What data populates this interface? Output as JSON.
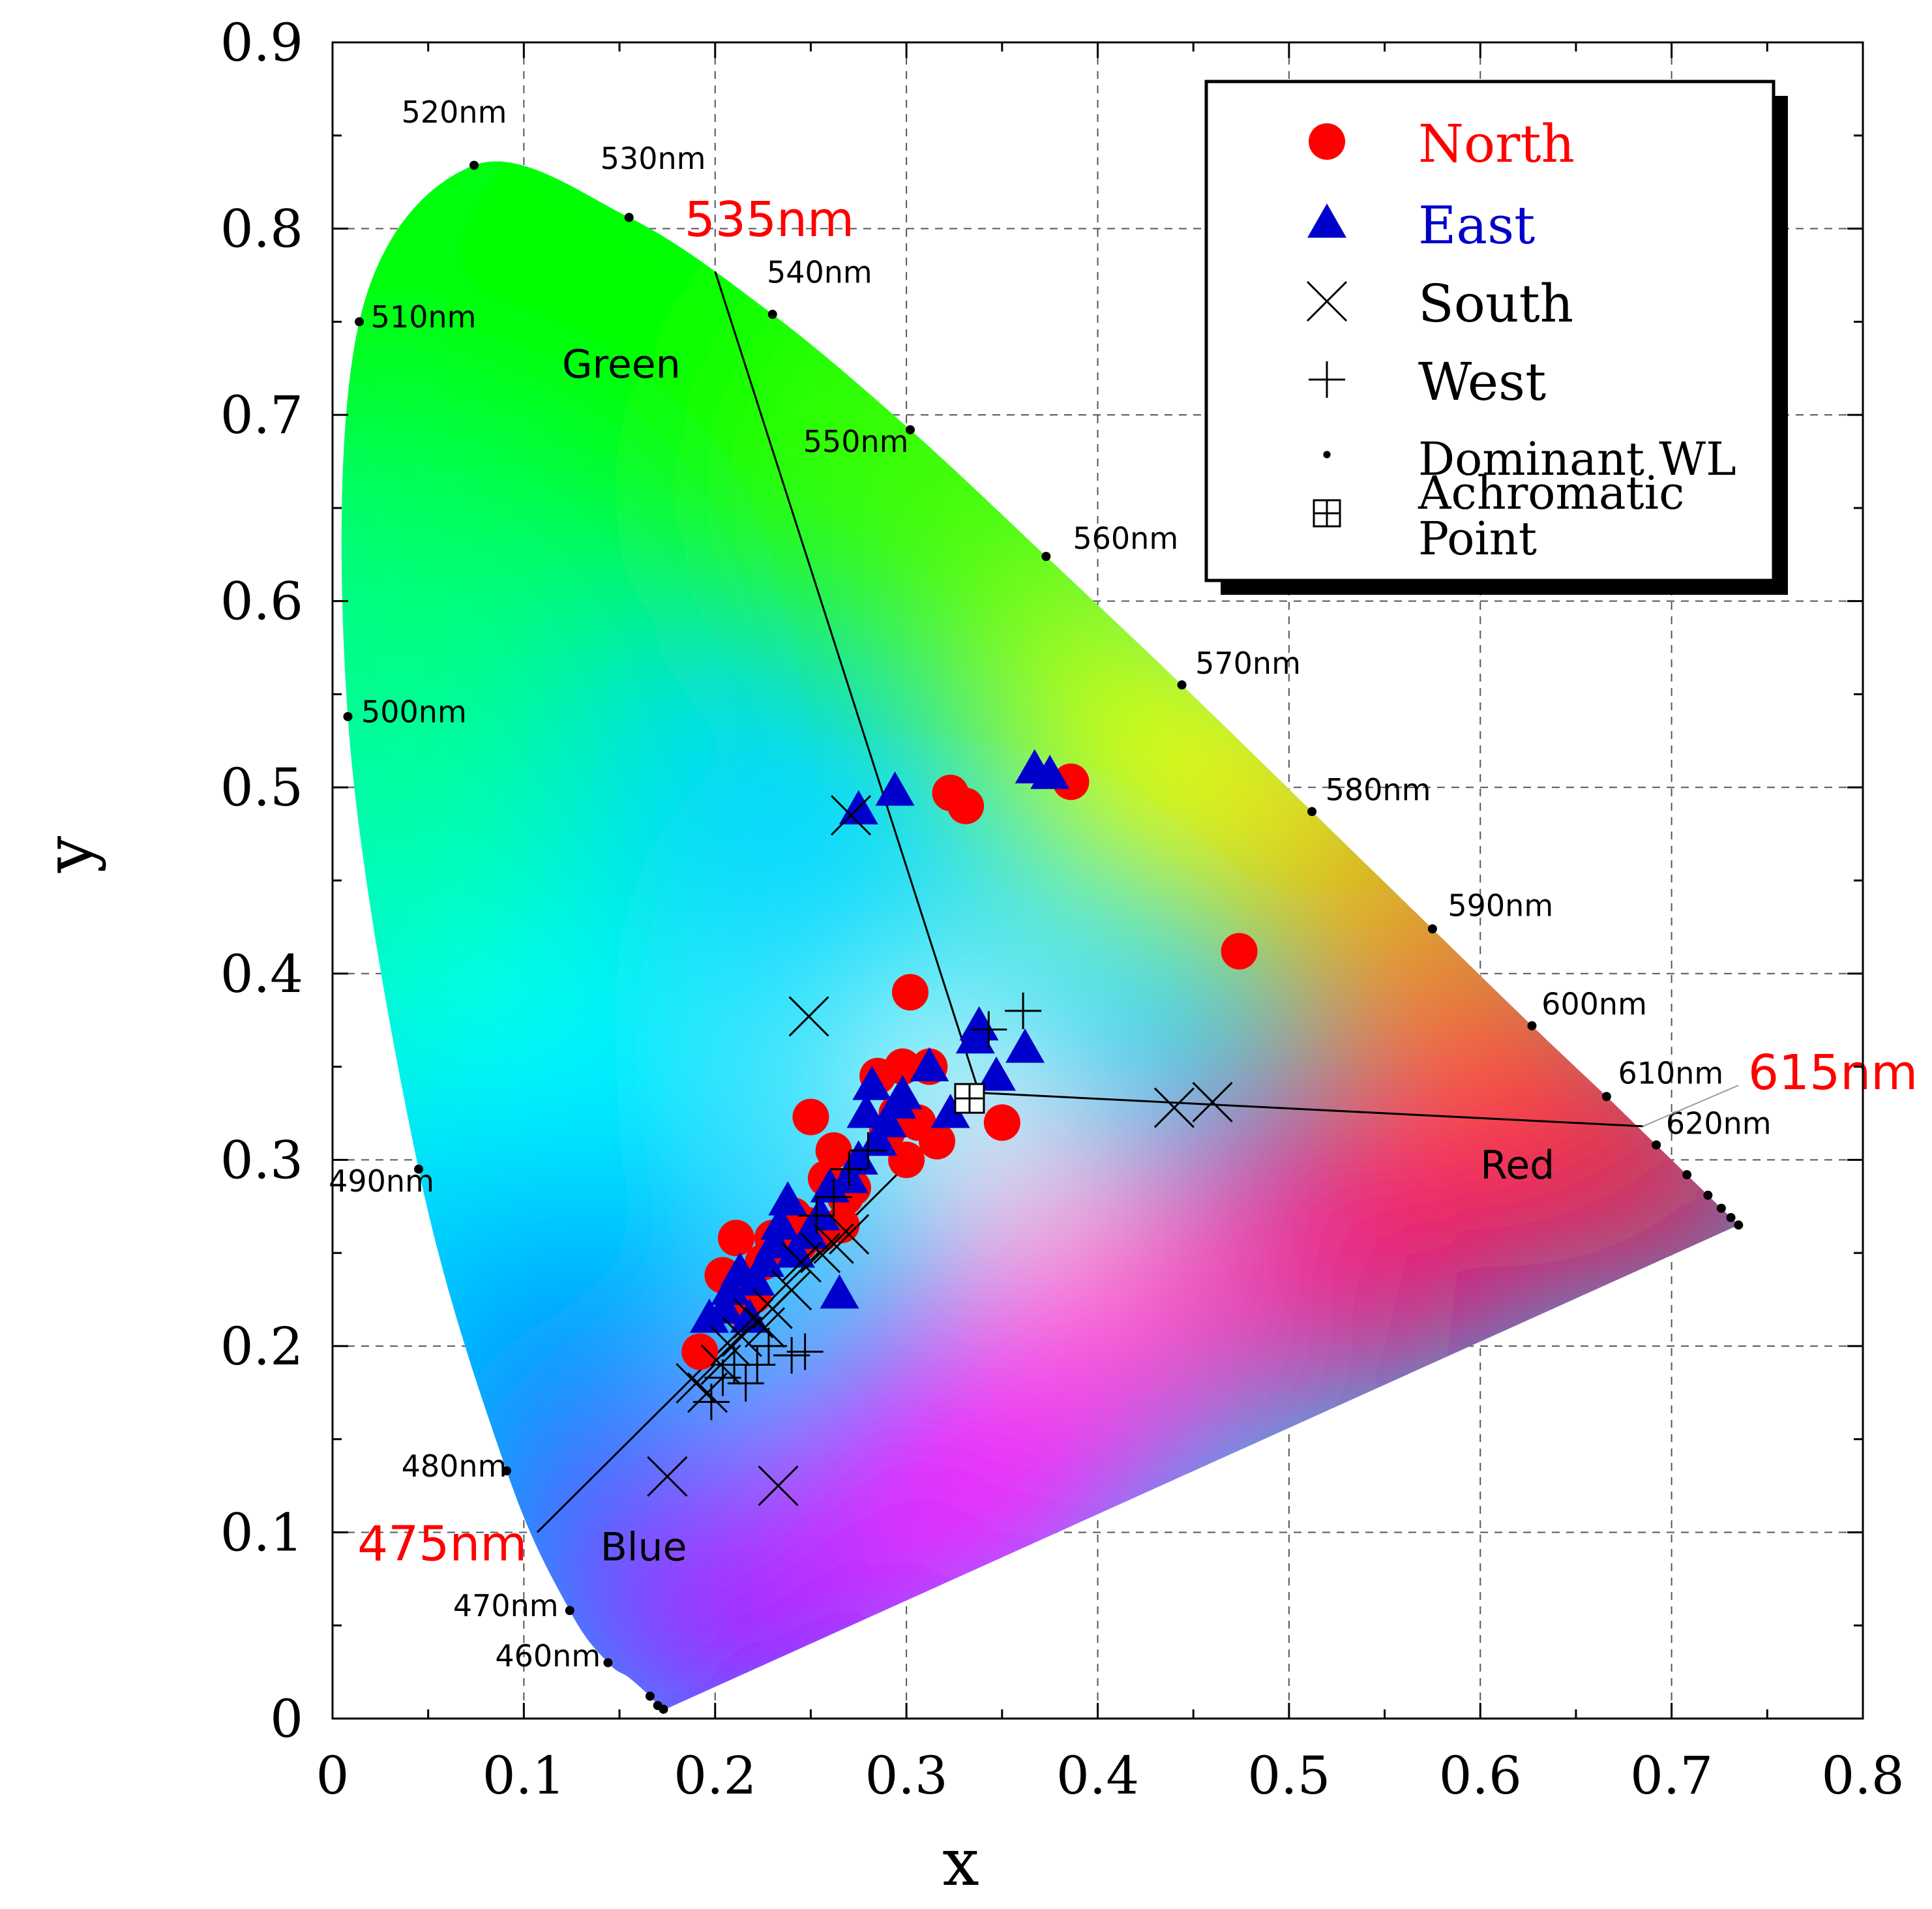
{
  "chart_data": {
    "type": "scatter",
    "xlabel": "x",
    "ylabel": "y",
    "xlim": [
      0,
      0.8
    ],
    "ylim": [
      0,
      0.9
    ],
    "x_ticks": [
      "0",
      "0.1",
      "0.2",
      "0.3",
      "0.4",
      "0.5",
      "0.6",
      "0.7",
      "0.8"
    ],
    "y_ticks": [
      "0",
      "0.1",
      "0.2",
      "0.3",
      "0.4",
      "0.5",
      "0.6",
      "0.7",
      "0.8",
      "0.9"
    ],
    "grid": true,
    "spectral_locus": [
      [
        0.174,
        0.005
      ],
      [
        0.1738,
        0.0049
      ],
      [
        0.173,
        0.005
      ],
      [
        0.17,
        0.007
      ],
      [
        0.166,
        0.012
      ],
      [
        0.155,
        0.022
      ],
      [
        0.144,
        0.03
      ],
      [
        0.124,
        0.058
      ],
      [
        0.091,
        0.133
      ],
      [
        0.045,
        0.295
      ],
      [
        0.008,
        0.538
      ],
      [
        0.014,
        0.75
      ],
      [
        0.074,
        0.834
      ],
      [
        0.155,
        0.806
      ],
      [
        0.23,
        0.754
      ],
      [
        0.302,
        0.692
      ],
      [
        0.373,
        0.624
      ],
      [
        0.444,
        0.555
      ],
      [
        0.512,
        0.487
      ],
      [
        0.575,
        0.424
      ],
      [
        0.627,
        0.372
      ],
      [
        0.666,
        0.334
      ],
      [
        0.692,
        0.308
      ],
      [
        0.708,
        0.292
      ],
      [
        0.719,
        0.281
      ],
      [
        0.726,
        0.274
      ],
      [
        0.731,
        0.269
      ],
      [
        0.735,
        0.265
      ]
    ],
    "wavelength_markers": [
      {
        "label": "460nm",
        "x": 0.144,
        "y": 0.03,
        "lx": 0.085,
        "ly": 0.028
      },
      {
        "label": "470nm",
        "x": 0.124,
        "y": 0.058,
        "lx": 0.063,
        "ly": 0.055
      },
      {
        "label": "480nm",
        "x": 0.091,
        "y": 0.133,
        "lx": 0.036,
        "ly": 0.13
      },
      {
        "label": "490nm",
        "x": 0.045,
        "y": 0.295,
        "lx": -0.002,
        "ly": 0.283
      },
      {
        "label": "500nm",
        "x": 0.008,
        "y": 0.538,
        "lx": 0.015,
        "ly": 0.535
      },
      {
        "label": "510nm",
        "x": 0.014,
        "y": 0.75,
        "lx": 0.02,
        "ly": 0.747
      },
      {
        "label": "520nm",
        "x": 0.074,
        "y": 0.834,
        "lx": 0.036,
        "ly": 0.857
      },
      {
        "label": "530nm",
        "x": 0.155,
        "y": 0.806,
        "lx": 0.14,
        "ly": 0.832
      },
      {
        "label": "540nm",
        "x": 0.23,
        "y": 0.754,
        "lx": 0.227,
        "ly": 0.771
      },
      {
        "label": "550nm",
        "x": 0.302,
        "y": 0.692,
        "lx": 0.246,
        "ly": 0.68
      },
      {
        "label": "560nm",
        "x": 0.373,
        "y": 0.624,
        "lx": 0.387,
        "ly": 0.628
      },
      {
        "label": "570nm",
        "x": 0.444,
        "y": 0.555,
        "lx": 0.451,
        "ly": 0.561
      },
      {
        "label": "580nm",
        "x": 0.512,
        "y": 0.487,
        "lx": 0.519,
        "ly": 0.493
      },
      {
        "label": "590nm",
        "x": 0.575,
        "y": 0.424,
        "lx": 0.583,
        "ly": 0.431
      },
      {
        "label": "600nm",
        "x": 0.627,
        "y": 0.372,
        "lx": 0.632,
        "ly": 0.378
      },
      {
        "label": "610nm",
        "x": 0.666,
        "y": 0.334,
        "lx": 0.672,
        "ly": 0.341
      },
      {
        "label": "620nm",
        "x": 0.692,
        "y": 0.308,
        "lx": 0.697,
        "ly": 0.314
      }
    ],
    "extra_dots": [
      [
        0.708,
        0.292
      ],
      [
        0.719,
        0.281
      ],
      [
        0.726,
        0.274
      ],
      [
        0.731,
        0.269
      ],
      [
        0.735,
        0.265
      ],
      [
        0.166,
        0.012
      ],
      [
        0.17,
        0.007
      ],
      [
        0.173,
        0.005
      ]
    ],
    "dominant_lines": [
      {
        "label": "535nm",
        "x1": 0.338,
        "y1": 0.336,
        "x2": 0.2,
        "y2": 0.777,
        "lx": 0.184,
        "ly": 0.796
      },
      {
        "label": "615nm",
        "x1": 0.338,
        "y1": 0.336,
        "x2": 0.685,
        "y2": 0.318,
        "lx": 0.74,
        "ly": 0.338
      },
      {
        "label": "475nm",
        "x1": 0.338,
        "y1": 0.336,
        "x2": 0.107,
        "y2": 0.1,
        "lx": 0.013,
        "ly": 0.085
      }
    ],
    "region_labels": [
      {
        "text": "Green",
        "x": 0.12,
        "y": 0.72
      },
      {
        "text": "Red",
        "x": 0.6,
        "y": 0.29
      },
      {
        "text": "Blue",
        "x": 0.14,
        "y": 0.085
      }
    ],
    "achromatic_point": [
      0.333,
      0.333
    ],
    "series": [
      {
        "name": "North",
        "marker": "circle",
        "color": "#ff0000",
        "points": [
          [
            0.192,
            0.197
          ],
          [
            0.204,
            0.238
          ],
          [
            0.211,
            0.258
          ],
          [
            0.214,
            0.22
          ],
          [
            0.22,
            0.227
          ],
          [
            0.225,
            0.245
          ],
          [
            0.23,
            0.258
          ],
          [
            0.237,
            0.258
          ],
          [
            0.241,
            0.27
          ],
          [
            0.244,
            0.255
          ],
          [
            0.248,
            0.265
          ],
          [
            0.25,
            0.323
          ],
          [
            0.255,
            0.26
          ],
          [
            0.258,
            0.29
          ],
          [
            0.262,
            0.305
          ],
          [
            0.266,
            0.265
          ],
          [
            0.268,
            0.28
          ],
          [
            0.272,
            0.285
          ],
          [
            0.285,
            0.345
          ],
          [
            0.29,
            0.315
          ],
          [
            0.295,
            0.325
          ],
          [
            0.298,
            0.35
          ],
          [
            0.3,
            0.3
          ],
          [
            0.302,
            0.39
          ],
          [
            0.306,
            0.32
          ],
          [
            0.312,
            0.35
          ],
          [
            0.316,
            0.31
          ],
          [
            0.323,
            0.497
          ],
          [
            0.331,
            0.49
          ],
          [
            0.35,
            0.32
          ],
          [
            0.386,
            0.503
          ],
          [
            0.474,
            0.412
          ]
        ]
      },
      {
        "name": "East",
        "marker": "triangle",
        "color": "#0000cc",
        "points": [
          [
            0.197,
            0.215
          ],
          [
            0.205,
            0.22
          ],
          [
            0.208,
            0.23
          ],
          [
            0.213,
            0.24
          ],
          [
            0.218,
            0.215
          ],
          [
            0.221,
            0.235
          ],
          [
            0.226,
            0.245
          ],
          [
            0.231,
            0.255
          ],
          [
            0.234,
            0.265
          ],
          [
            0.238,
            0.278
          ],
          [
            0.242,
            0.25
          ],
          [
            0.249,
            0.26
          ],
          [
            0.255,
            0.27
          ],
          [
            0.26,
            0.285
          ],
          [
            0.265,
            0.228
          ],
          [
            0.27,
            0.29
          ],
          [
            0.275,
            0.3
          ],
          [
            0.279,
            0.325
          ],
          [
            0.282,
            0.34
          ],
          [
            0.285,
            0.31
          ],
          [
            0.29,
            0.32
          ],
          [
            0.295,
            0.33
          ],
          [
            0.298,
            0.335
          ],
          [
            0.312,
            0.35
          ],
          [
            0.323,
            0.325
          ],
          [
            0.336,
            0.365
          ],
          [
            0.338,
            0.372
          ],
          [
            0.347,
            0.345
          ],
          [
            0.362,
            0.36
          ],
          [
            0.275,
            0.488
          ],
          [
            0.294,
            0.498
          ],
          [
            0.367,
            0.51
          ],
          [
            0.375,
            0.507
          ]
        ]
      },
      {
        "name": "South",
        "marker": "x",
        "color": "#000000",
        "points": [
          [
            0.175,
            0.13
          ],
          [
            0.233,
            0.125
          ],
          [
            0.19,
            0.18
          ],
          [
            0.196,
            0.175
          ],
          [
            0.203,
            0.19
          ],
          [
            0.208,
            0.2
          ],
          [
            0.214,
            0.205
          ],
          [
            0.22,
            0.215
          ],
          [
            0.226,
            0.21
          ],
          [
            0.23,
            0.22
          ],
          [
            0.24,
            0.23
          ],
          [
            0.245,
            0.245
          ],
          [
            0.255,
            0.25
          ],
          [
            0.262,
            0.255
          ],
          [
            0.27,
            0.26
          ],
          [
            0.249,
            0.377
          ],
          [
            0.271,
            0.485
          ],
          [
            0.44,
            0.328
          ],
          [
            0.46,
            0.331
          ]
        ]
      },
      {
        "name": "West",
        "marker": "plus",
        "color": "#000000",
        "points": [
          [
            0.198,
            0.17
          ],
          [
            0.204,
            0.183
          ],
          [
            0.21,
            0.19
          ],
          [
            0.216,
            0.18
          ],
          [
            0.222,
            0.19
          ],
          [
            0.228,
            0.2
          ],
          [
            0.24,
            0.195
          ],
          [
            0.247,
            0.197
          ],
          [
            0.253,
            0.27
          ],
          [
            0.262,
            0.28
          ],
          [
            0.27,
            0.295
          ],
          [
            0.28,
            0.305
          ],
          [
            0.343,
            0.37
          ],
          [
            0.361,
            0.38
          ]
        ]
      }
    ],
    "legend": {
      "position": "top-right",
      "entries": [
        {
          "label": "North",
          "marker": "circle",
          "color": "#ff0000"
        },
        {
          "label": "East",
          "marker": "triangle",
          "color": "#0000cc"
        },
        {
          "label": "South",
          "marker": "x",
          "color": "#000000"
        },
        {
          "label": "West",
          "marker": "plus",
          "color": "#000000"
        },
        {
          "label": "Dominant WL",
          "marker": "dot",
          "color": "#000000"
        },
        {
          "label": "Achromatic Point",
          "marker": "boxplus",
          "color": "#000000"
        }
      ]
    }
  }
}
